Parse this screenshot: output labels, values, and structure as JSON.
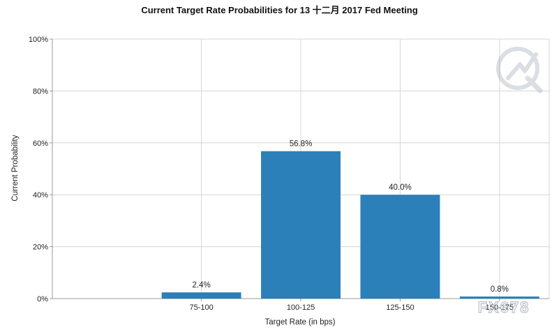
{
  "chart_data": {
    "type": "bar",
    "title": "Current Target Rate Probabilities for 13 十二月 2017 Fed Meeting",
    "xlabel": "Target Rate (in bps)",
    "ylabel": "Current Probability",
    "categories": [
      "75-100",
      "100-125",
      "125-150",
      "150-175"
    ],
    "values": [
      2.4,
      56.8,
      40.0,
      0.8
    ],
    "data_labels": [
      "2.4%",
      "56.8%",
      "40.0%",
      "0.8%"
    ],
    "ylim": [
      0,
      100
    ],
    "yticks": [
      0,
      20,
      40,
      60,
      80,
      100
    ],
    "ytick_labels": [
      "0%",
      "20%",
      "40%",
      "60%",
      "80%",
      "100%"
    ],
    "grid": true,
    "bar_color": "#2b80b9"
  },
  "watermark": {
    "text": "FX678"
  }
}
